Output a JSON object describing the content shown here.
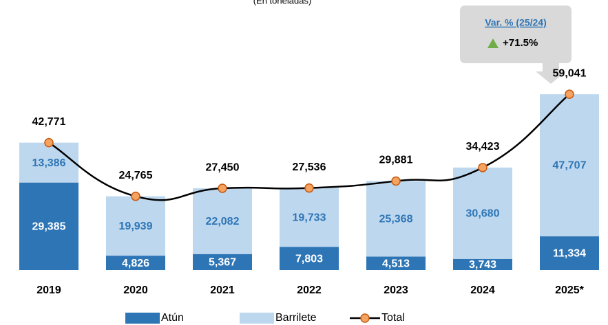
{
  "chart_data": {
    "type": "bar",
    "subtitle": "(En toneladas)",
    "categories": [
      "2019",
      "2020",
      "2021",
      "2022",
      "2023",
      "2024",
      "2025*"
    ],
    "series": [
      {
        "name": "Atún",
        "color": "#2e75b6",
        "values": [
          29385,
          4826,
          5367,
          7803,
          4513,
          3743,
          11334
        ]
      },
      {
        "name": "Barrilete",
        "color": "#bdd7ee",
        "label_color": "#2e75b6",
        "values": [
          13386,
          19939,
          22082,
          19733,
          25368,
          30680,
          47707
        ]
      },
      {
        "name": "Total",
        "type": "line",
        "color": "#000000",
        "marker_color": "#f4a460",
        "values": [
          42771,
          24765,
          27450,
          27536,
          29881,
          34423,
          59041
        ]
      }
    ],
    "ylim": [
      0,
      90000
    ],
    "annotation": {
      "title": "Var. % (25/24)",
      "text": "+71.5%"
    },
    "legend": "bottom"
  }
}
